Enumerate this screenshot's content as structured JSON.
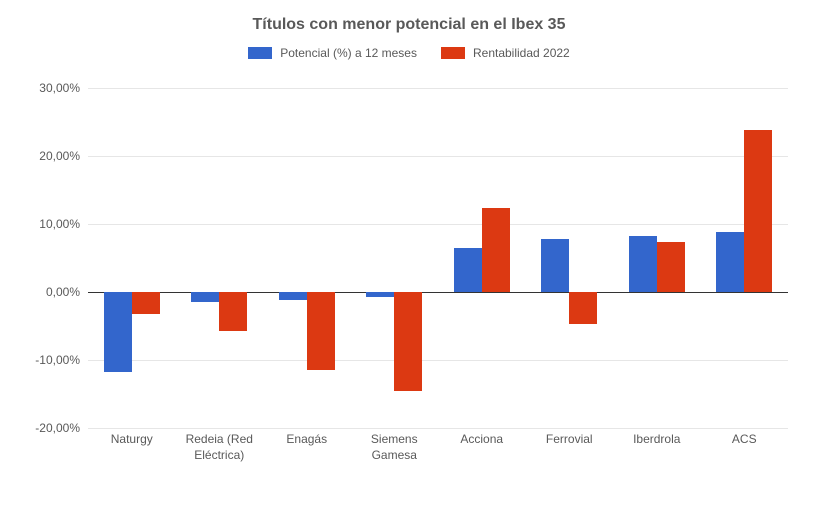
{
  "chart": {
    "type": "bar",
    "title": "Títulos con menor potencial en el Ibex 35",
    "title_fontsize": 16,
    "title_color": "#595959",
    "background_color": "#ffffff",
    "grid_color": "#e6e6e6",
    "axis_color": "#333333",
    "label_color": "#595959",
    "label_fontsize": 12,
    "ylim": [
      -20,
      30
    ],
    "ytick_step": 10,
    "y_tick_labels": [
      "-20,00%",
      "-10,00%",
      "0,00%",
      "10,00%",
      "20,00%",
      "30,00%"
    ],
    "y_tick_values": [
      -20,
      -10,
      0,
      10,
      20,
      30
    ],
    "categories": [
      "Naturgy",
      "Redeia (Red Eléctrica)",
      "Enagás",
      "Siemens Gamesa",
      "Acciona",
      "Ferrovial",
      "Iberdrola",
      "ACS"
    ],
    "series": [
      {
        "name": "Potencial (%) a 12 meses",
        "color": "#3366cc",
        "values": [
          -11.8,
          -1.5,
          -1.2,
          -0.8,
          6.5,
          7.8,
          8.3,
          8.8
        ]
      },
      {
        "name": "Rentabilidad 2022",
        "color": "#dc3912",
        "values": [
          -3.3,
          -5.8,
          -11.5,
          -14.6,
          12.3,
          -4.7,
          7.3,
          23.8
        ]
      }
    ],
    "bar_width_ratio": 0.32,
    "group_gap_ratio": 0.36
  }
}
